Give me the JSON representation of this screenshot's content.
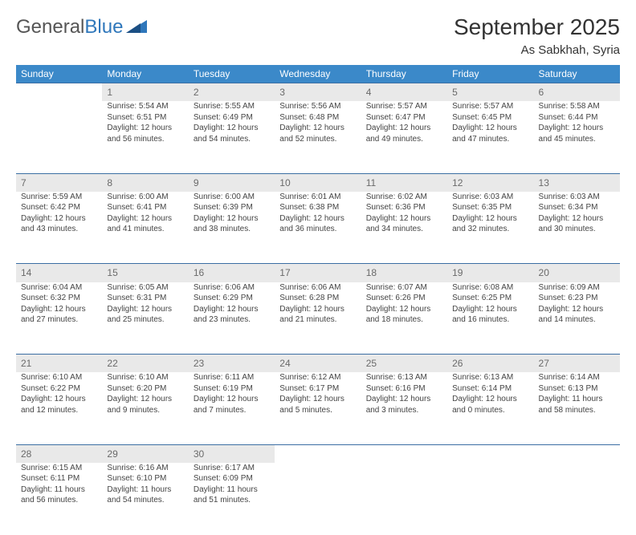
{
  "brand": {
    "word1": "General",
    "word2": "Blue"
  },
  "title": "September 2025",
  "subtitle": "As Sabkhah, Syria",
  "colors": {
    "header_bg": "#3b89c9",
    "header_text": "#ffffff",
    "daynum_bg": "#e9e9e9",
    "daynum_text": "#6a6a6a",
    "cell_border": "#3b6ea3",
    "body_text": "#444444",
    "brand_blue": "#2f77bb"
  },
  "day_headers": [
    "Sunday",
    "Monday",
    "Tuesday",
    "Wednesday",
    "Thursday",
    "Friday",
    "Saturday"
  ],
  "weeks": [
    {
      "nums": [
        "",
        "1",
        "2",
        "3",
        "4",
        "5",
        "6"
      ],
      "cells": [
        null,
        {
          "sunrise": "Sunrise: 5:54 AM",
          "sunset": "Sunset: 6:51 PM",
          "day1": "Daylight: 12 hours",
          "day2": "and 56 minutes."
        },
        {
          "sunrise": "Sunrise: 5:55 AM",
          "sunset": "Sunset: 6:49 PM",
          "day1": "Daylight: 12 hours",
          "day2": "and 54 minutes."
        },
        {
          "sunrise": "Sunrise: 5:56 AM",
          "sunset": "Sunset: 6:48 PM",
          "day1": "Daylight: 12 hours",
          "day2": "and 52 minutes."
        },
        {
          "sunrise": "Sunrise: 5:57 AM",
          "sunset": "Sunset: 6:47 PM",
          "day1": "Daylight: 12 hours",
          "day2": "and 49 minutes."
        },
        {
          "sunrise": "Sunrise: 5:57 AM",
          "sunset": "Sunset: 6:45 PM",
          "day1": "Daylight: 12 hours",
          "day2": "and 47 minutes."
        },
        {
          "sunrise": "Sunrise: 5:58 AM",
          "sunset": "Sunset: 6:44 PM",
          "day1": "Daylight: 12 hours",
          "day2": "and 45 minutes."
        }
      ]
    },
    {
      "nums": [
        "7",
        "8",
        "9",
        "10",
        "11",
        "12",
        "13"
      ],
      "cells": [
        {
          "sunrise": "Sunrise: 5:59 AM",
          "sunset": "Sunset: 6:42 PM",
          "day1": "Daylight: 12 hours",
          "day2": "and 43 minutes."
        },
        {
          "sunrise": "Sunrise: 6:00 AM",
          "sunset": "Sunset: 6:41 PM",
          "day1": "Daylight: 12 hours",
          "day2": "and 41 minutes."
        },
        {
          "sunrise": "Sunrise: 6:00 AM",
          "sunset": "Sunset: 6:39 PM",
          "day1": "Daylight: 12 hours",
          "day2": "and 38 minutes."
        },
        {
          "sunrise": "Sunrise: 6:01 AM",
          "sunset": "Sunset: 6:38 PM",
          "day1": "Daylight: 12 hours",
          "day2": "and 36 minutes."
        },
        {
          "sunrise": "Sunrise: 6:02 AM",
          "sunset": "Sunset: 6:36 PM",
          "day1": "Daylight: 12 hours",
          "day2": "and 34 minutes."
        },
        {
          "sunrise": "Sunrise: 6:03 AM",
          "sunset": "Sunset: 6:35 PM",
          "day1": "Daylight: 12 hours",
          "day2": "and 32 minutes."
        },
        {
          "sunrise": "Sunrise: 6:03 AM",
          "sunset": "Sunset: 6:34 PM",
          "day1": "Daylight: 12 hours",
          "day2": "and 30 minutes."
        }
      ]
    },
    {
      "nums": [
        "14",
        "15",
        "16",
        "17",
        "18",
        "19",
        "20"
      ],
      "cells": [
        {
          "sunrise": "Sunrise: 6:04 AM",
          "sunset": "Sunset: 6:32 PM",
          "day1": "Daylight: 12 hours",
          "day2": "and 27 minutes."
        },
        {
          "sunrise": "Sunrise: 6:05 AM",
          "sunset": "Sunset: 6:31 PM",
          "day1": "Daylight: 12 hours",
          "day2": "and 25 minutes."
        },
        {
          "sunrise": "Sunrise: 6:06 AM",
          "sunset": "Sunset: 6:29 PM",
          "day1": "Daylight: 12 hours",
          "day2": "and 23 minutes."
        },
        {
          "sunrise": "Sunrise: 6:06 AM",
          "sunset": "Sunset: 6:28 PM",
          "day1": "Daylight: 12 hours",
          "day2": "and 21 minutes."
        },
        {
          "sunrise": "Sunrise: 6:07 AM",
          "sunset": "Sunset: 6:26 PM",
          "day1": "Daylight: 12 hours",
          "day2": "and 18 minutes."
        },
        {
          "sunrise": "Sunrise: 6:08 AM",
          "sunset": "Sunset: 6:25 PM",
          "day1": "Daylight: 12 hours",
          "day2": "and 16 minutes."
        },
        {
          "sunrise": "Sunrise: 6:09 AM",
          "sunset": "Sunset: 6:23 PM",
          "day1": "Daylight: 12 hours",
          "day2": "and 14 minutes."
        }
      ]
    },
    {
      "nums": [
        "21",
        "22",
        "23",
        "24",
        "25",
        "26",
        "27"
      ],
      "cells": [
        {
          "sunrise": "Sunrise: 6:10 AM",
          "sunset": "Sunset: 6:22 PM",
          "day1": "Daylight: 12 hours",
          "day2": "and 12 minutes."
        },
        {
          "sunrise": "Sunrise: 6:10 AM",
          "sunset": "Sunset: 6:20 PM",
          "day1": "Daylight: 12 hours",
          "day2": "and 9 minutes."
        },
        {
          "sunrise": "Sunrise: 6:11 AM",
          "sunset": "Sunset: 6:19 PM",
          "day1": "Daylight: 12 hours",
          "day2": "and 7 minutes."
        },
        {
          "sunrise": "Sunrise: 6:12 AM",
          "sunset": "Sunset: 6:17 PM",
          "day1": "Daylight: 12 hours",
          "day2": "and 5 minutes."
        },
        {
          "sunrise": "Sunrise: 6:13 AM",
          "sunset": "Sunset: 6:16 PM",
          "day1": "Daylight: 12 hours",
          "day2": "and 3 minutes."
        },
        {
          "sunrise": "Sunrise: 6:13 AM",
          "sunset": "Sunset: 6:14 PM",
          "day1": "Daylight: 12 hours",
          "day2": "and 0 minutes."
        },
        {
          "sunrise": "Sunrise: 6:14 AM",
          "sunset": "Sunset: 6:13 PM",
          "day1": "Daylight: 11 hours",
          "day2": "and 58 minutes."
        }
      ]
    },
    {
      "nums": [
        "28",
        "29",
        "30",
        "",
        "",
        "",
        ""
      ],
      "cells": [
        {
          "sunrise": "Sunrise: 6:15 AM",
          "sunset": "Sunset: 6:11 PM",
          "day1": "Daylight: 11 hours",
          "day2": "and 56 minutes."
        },
        {
          "sunrise": "Sunrise: 6:16 AM",
          "sunset": "Sunset: 6:10 PM",
          "day1": "Daylight: 11 hours",
          "day2": "and 54 minutes."
        },
        {
          "sunrise": "Sunrise: 6:17 AM",
          "sunset": "Sunset: 6:09 PM",
          "day1": "Daylight: 11 hours",
          "day2": "and 51 minutes."
        },
        null,
        null,
        null,
        null
      ]
    }
  ]
}
